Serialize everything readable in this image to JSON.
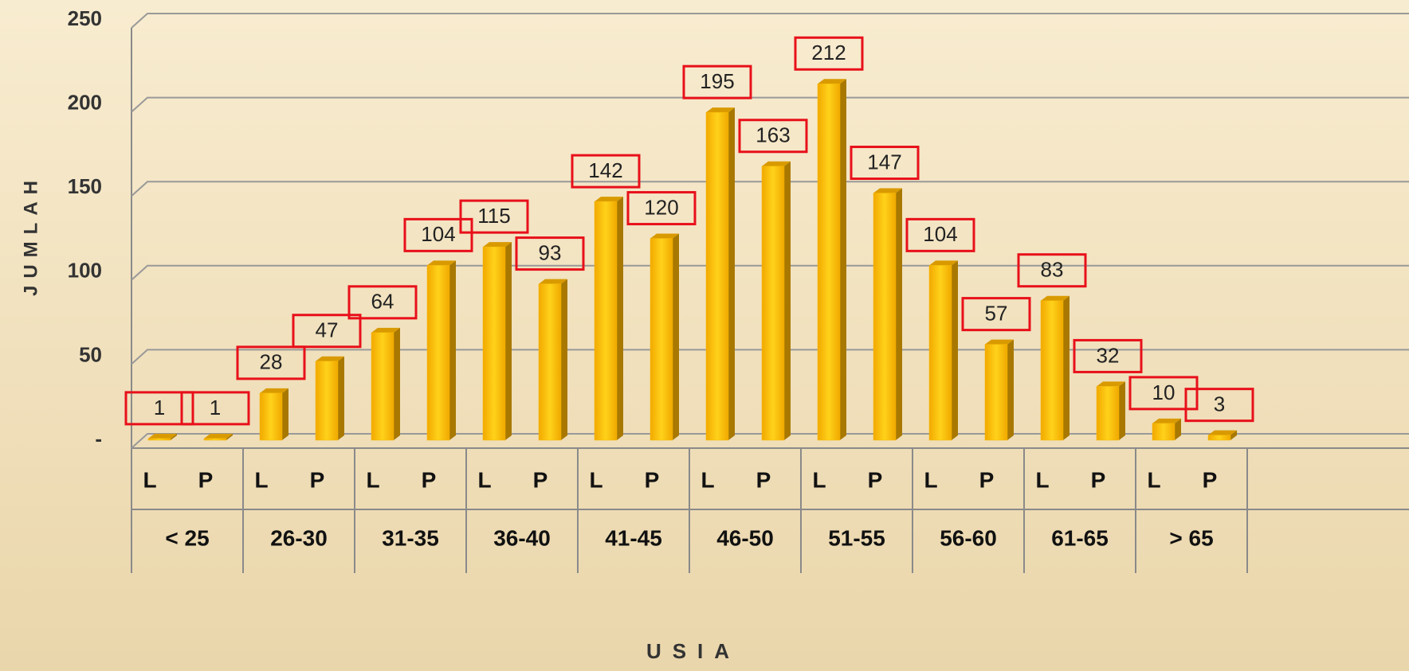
{
  "chart_data": {
    "type": "bar",
    "categories": [
      "L",
      "P",
      "L",
      "P",
      "L",
      "P",
      "L",
      "P",
      "L",
      "P",
      "L",
      "P",
      "L",
      "P",
      "L",
      "P",
      "L",
      "P",
      "L",
      "P"
    ],
    "groups": [
      "< 25",
      "26-30",
      "31-35",
      "36-40",
      "41-45",
      "46-50",
      "51-55",
      "56-60",
      "61-65",
      "> 65"
    ],
    "values": [
      1,
      1,
      28,
      47,
      64,
      104,
      115,
      93,
      142,
      120,
      195,
      163,
      212,
      147,
      104,
      57,
      83,
      32,
      10,
      3
    ],
    "color": "#f5b800",
    "ylim": [
      0,
      250
    ],
    "yticks": [
      {
        "value": 0,
        "label": "-"
      },
      50,
      100,
      150,
      200,
      250
    ],
    "grid": true,
    "y_label": "JUMLAH",
    "x_label": "USIA"
  }
}
